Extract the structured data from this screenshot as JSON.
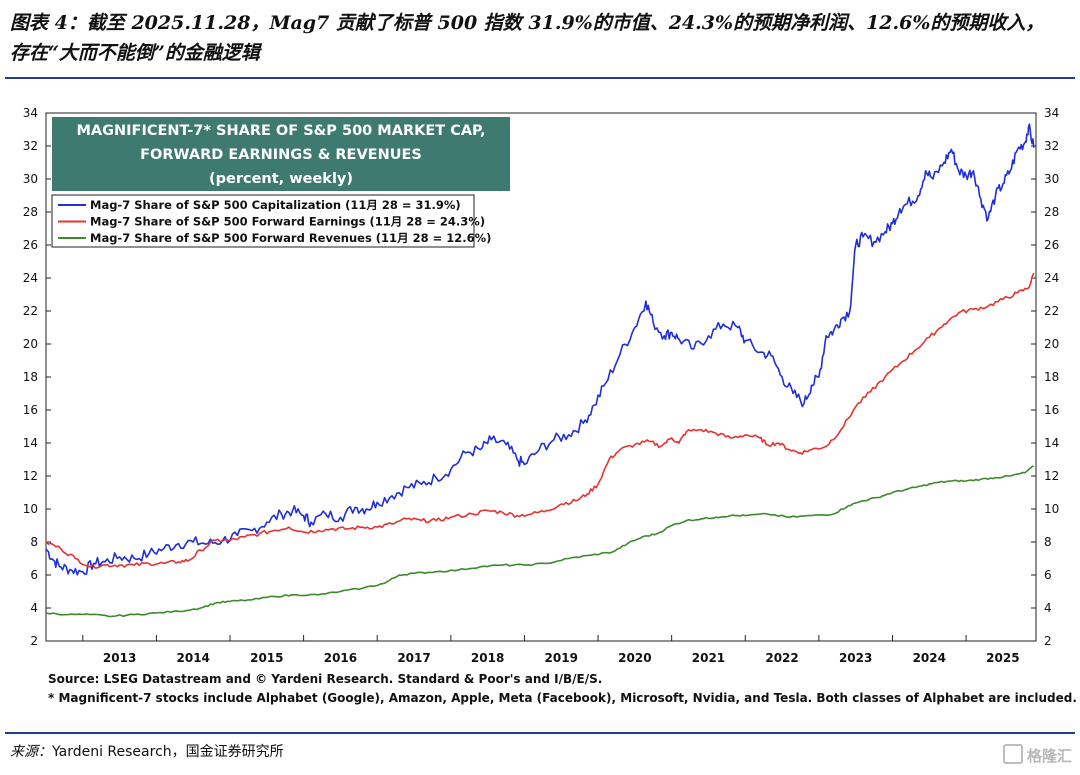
{
  "caption": {
    "line1": "图表 4：截至 2025.11.28，Mag7 贡献了标普 500 指数 31.9%的市值、24.3%的预期净利润、12.6%的预期收入，",
    "line2": "存在“大而不能倒”的金融逻辑"
  },
  "source_note": {
    "prefix": "来源：",
    "text": "Yardeni Research，国金证券研究所"
  },
  "watermark": "格隆汇",
  "colors": {
    "cap": "#1f2fd6",
    "earnings": "#e8322e",
    "revenues": "#3c8a2c",
    "title_box": "#3f7a70"
  },
  "chart_data": {
    "type": "line",
    "title_lines": [
      "MAGNIFICENT-7* SHARE OF S&P 500 MARKET CAP,",
      "FORWARD EARNINGS & REVENUES",
      "(percent, weekly)"
    ],
    "ylim": [
      2,
      34
    ],
    "yticks": [
      2,
      4,
      6,
      8,
      10,
      12,
      14,
      16,
      18,
      20,
      22,
      24,
      26,
      28,
      30,
      32,
      34
    ],
    "xlim": [
      2012.5,
      2025.95
    ],
    "xtick_labels": [
      "2013",
      "2014",
      "2015",
      "2016",
      "2017",
      "2018",
      "2019",
      "2020",
      "2021",
      "2022",
      "2023",
      "2024",
      "2025"
    ],
    "legend_position": "top-left",
    "grid": false,
    "series": [
      {
        "name": "Mag-7 Share of S&P 500 Capitalization (11月 28 = 31.9%)",
        "color_key": "cap",
        "points": [
          [
            2012.5,
            7.6
          ],
          [
            2012.6,
            6.9
          ],
          [
            2012.7,
            6.5
          ],
          [
            2012.85,
            6.3
          ],
          [
            2013.0,
            6.2
          ],
          [
            2013.15,
            6.7
          ],
          [
            2013.3,
            6.8
          ],
          [
            2013.5,
            7.1
          ],
          [
            2013.7,
            7.0
          ],
          [
            2013.9,
            7.3
          ],
          [
            2014.1,
            7.6
          ],
          [
            2014.3,
            7.9
          ],
          [
            2014.5,
            8.0
          ],
          [
            2014.7,
            7.9
          ],
          [
            2014.9,
            8.1
          ],
          [
            2015.1,
            8.4
          ],
          [
            2015.3,
            8.7
          ],
          [
            2015.5,
            9.2
          ],
          [
            2015.7,
            9.7
          ],
          [
            2015.85,
            9.9
          ],
          [
            2016.0,
            9.6
          ],
          [
            2016.1,
            9.2
          ],
          [
            2016.3,
            9.7
          ],
          [
            2016.5,
            9.5
          ],
          [
            2016.7,
            10.1
          ],
          [
            2016.85,
            10.0
          ],
          [
            2017.0,
            10.4
          ],
          [
            2017.2,
            10.8
          ],
          [
            2017.4,
            11.3
          ],
          [
            2017.6,
            11.5
          ],
          [
            2017.8,
            11.9
          ],
          [
            2018.0,
            12.4
          ],
          [
            2018.2,
            13.4
          ],
          [
            2018.4,
            13.6
          ],
          [
            2018.55,
            14.2
          ],
          [
            2018.75,
            13.9
          ],
          [
            2018.9,
            13.0
          ],
          [
            2019.0,
            12.7
          ],
          [
            2019.2,
            13.6
          ],
          [
            2019.4,
            14.2
          ],
          [
            2019.6,
            14.5
          ],
          [
            2019.8,
            15.2
          ],
          [
            2019.95,
            16.3
          ],
          [
            2020.1,
            17.6
          ],
          [
            2020.3,
            19.4
          ],
          [
            2020.5,
            21.0
          ],
          [
            2020.65,
            22.6
          ],
          [
            2020.75,
            21.3
          ],
          [
            2020.9,
            20.5
          ],
          [
            2021.0,
            20.7
          ],
          [
            2021.1,
            20.3
          ],
          [
            2021.3,
            19.7
          ],
          [
            2021.5,
            20.5
          ],
          [
            2021.7,
            21.2
          ],
          [
            2021.9,
            21.0
          ],
          [
            2022.0,
            20.2
          ],
          [
            2022.2,
            19.5
          ],
          [
            2022.35,
            19.3
          ],
          [
            2022.5,
            18.0
          ],
          [
            2022.65,
            17.0
          ],
          [
            2022.8,
            16.4
          ],
          [
            2022.9,
            17.5
          ],
          [
            2023.0,
            18.0
          ],
          [
            2023.1,
            20.5
          ],
          [
            2023.2,
            20.8
          ],
          [
            2023.3,
            21.5
          ],
          [
            2023.42,
            22.0
          ],
          [
            2023.5,
            26.0
          ],
          [
            2023.6,
            26.5
          ],
          [
            2023.75,
            26.2
          ],
          [
            2023.9,
            26.8
          ],
          [
            2024.0,
            27.3
          ],
          [
            2024.1,
            28.2
          ],
          [
            2024.2,
            28.5
          ],
          [
            2024.35,
            29.0
          ],
          [
            2024.45,
            30.5
          ],
          [
            2024.55,
            30.0
          ],
          [
            2024.7,
            31.0
          ],
          [
            2024.8,
            31.8
          ],
          [
            2024.9,
            30.5
          ],
          [
            2025.0,
            30.2
          ],
          [
            2025.1,
            30.5
          ],
          [
            2025.2,
            28.8
          ],
          [
            2025.3,
            27.6
          ],
          [
            2025.4,
            29.0
          ],
          [
            2025.5,
            29.7
          ],
          [
            2025.6,
            30.5
          ],
          [
            2025.7,
            31.8
          ],
          [
            2025.8,
            32.2
          ],
          [
            2025.85,
            33.2
          ],
          [
            2025.92,
            31.9
          ]
        ]
      },
      {
        "name": "Mag-7 Share of S&P 500 Forward Earnings (11月 28 = 24.3%)",
        "color_key": "earnings",
        "points": [
          [
            2012.5,
            8.0
          ],
          [
            2012.7,
            7.6
          ],
          [
            2012.9,
            7.0
          ],
          [
            2013.1,
            6.5
          ],
          [
            2013.3,
            6.6
          ],
          [
            2013.5,
            6.6
          ],
          [
            2013.7,
            6.6
          ],
          [
            2013.9,
            6.7
          ],
          [
            2014.1,
            6.7
          ],
          [
            2014.3,
            6.8
          ],
          [
            2014.45,
            6.9
          ],
          [
            2014.6,
            7.5
          ],
          [
            2014.8,
            8.1
          ],
          [
            2015.0,
            8.1
          ],
          [
            2015.2,
            8.3
          ],
          [
            2015.4,
            8.5
          ],
          [
            2015.6,
            8.7
          ],
          [
            2015.8,
            8.9
          ],
          [
            2016.0,
            8.6
          ],
          [
            2016.2,
            8.7
          ],
          [
            2016.4,
            8.8
          ],
          [
            2016.6,
            8.8
          ],
          [
            2016.8,
            8.9
          ],
          [
            2017.0,
            8.9
          ],
          [
            2017.2,
            9.1
          ],
          [
            2017.4,
            9.4
          ],
          [
            2017.6,
            9.3
          ],
          [
            2017.8,
            9.3
          ],
          [
            2018.0,
            9.5
          ],
          [
            2018.3,
            9.7
          ],
          [
            2018.5,
            9.9
          ],
          [
            2018.7,
            9.8
          ],
          [
            2018.9,
            9.6
          ],
          [
            2019.1,
            9.7
          ],
          [
            2019.3,
            9.9
          ],
          [
            2019.5,
            10.3
          ],
          [
            2019.7,
            10.5
          ],
          [
            2019.85,
            10.9
          ],
          [
            2020.0,
            11.5
          ],
          [
            2020.15,
            13.0
          ],
          [
            2020.3,
            13.6
          ],
          [
            2020.5,
            13.9
          ],
          [
            2020.7,
            14.1
          ],
          [
            2020.85,
            13.8
          ],
          [
            2021.0,
            14.3
          ],
          [
            2021.1,
            14.0
          ],
          [
            2021.2,
            14.7
          ],
          [
            2021.4,
            14.8
          ],
          [
            2021.6,
            14.6
          ],
          [
            2021.8,
            14.3
          ],
          [
            2022.0,
            14.5
          ],
          [
            2022.2,
            14.3
          ],
          [
            2022.3,
            13.9
          ],
          [
            2022.45,
            14.0
          ],
          [
            2022.6,
            13.6
          ],
          [
            2022.75,
            13.4
          ],
          [
            2022.9,
            13.6
          ],
          [
            2023.1,
            13.8
          ],
          [
            2023.3,
            14.8
          ],
          [
            2023.5,
            16.2
          ],
          [
            2023.7,
            17.1
          ],
          [
            2023.9,
            18.0
          ],
          [
            2024.1,
            18.8
          ],
          [
            2024.3,
            19.6
          ],
          [
            2024.5,
            20.4
          ],
          [
            2024.7,
            21.2
          ],
          [
            2024.9,
            21.9
          ],
          [
            2025.1,
            22.1
          ],
          [
            2025.3,
            22.3
          ],
          [
            2025.5,
            22.7
          ],
          [
            2025.7,
            23.1
          ],
          [
            2025.85,
            23.4
          ],
          [
            2025.92,
            24.3
          ]
        ]
      },
      {
        "name": "Mag-7 Share of S&P 500 Forward Revenues (11月 28 = 12.6%)",
        "color_key": "revenues",
        "points": [
          [
            2012.5,
            3.7
          ],
          [
            2012.8,
            3.6
          ],
          [
            2013.1,
            3.6
          ],
          [
            2013.4,
            3.5
          ],
          [
            2013.7,
            3.6
          ],
          [
            2014.0,
            3.7
          ],
          [
            2014.3,
            3.8
          ],
          [
            2014.6,
            4.0
          ],
          [
            2014.8,
            4.3
          ],
          [
            2015.0,
            4.4
          ],
          [
            2015.3,
            4.5
          ],
          [
            2015.6,
            4.7
          ],
          [
            2015.9,
            4.8
          ],
          [
            2016.2,
            4.8
          ],
          [
            2016.5,
            5.0
          ],
          [
            2016.8,
            5.2
          ],
          [
            2017.1,
            5.5
          ],
          [
            2017.3,
            6.0
          ],
          [
            2017.5,
            6.1
          ],
          [
            2017.8,
            6.2
          ],
          [
            2018.1,
            6.3
          ],
          [
            2018.4,
            6.5
          ],
          [
            2018.7,
            6.6
          ],
          [
            2019.0,
            6.6
          ],
          [
            2019.3,
            6.7
          ],
          [
            2019.6,
            7.0
          ],
          [
            2019.9,
            7.2
          ],
          [
            2020.2,
            7.4
          ],
          [
            2020.4,
            7.9
          ],
          [
            2020.6,
            8.3
          ],
          [
            2020.8,
            8.5
          ],
          [
            2021.0,
            9.0
          ],
          [
            2021.2,
            9.3
          ],
          [
            2021.4,
            9.4
          ],
          [
            2021.6,
            9.5
          ],
          [
            2021.8,
            9.6
          ],
          [
            2022.0,
            9.6
          ],
          [
            2022.3,
            9.7
          ],
          [
            2022.6,
            9.5
          ],
          [
            2022.9,
            9.6
          ],
          [
            2023.2,
            9.7
          ],
          [
            2023.4,
            10.2
          ],
          [
            2023.6,
            10.5
          ],
          [
            2023.8,
            10.7
          ],
          [
            2024.0,
            11.0
          ],
          [
            2024.2,
            11.2
          ],
          [
            2024.4,
            11.4
          ],
          [
            2024.6,
            11.6
          ],
          [
            2024.8,
            11.7
          ],
          [
            2025.0,
            11.7
          ],
          [
            2025.2,
            11.8
          ],
          [
            2025.4,
            11.9
          ],
          [
            2025.6,
            12.0
          ],
          [
            2025.8,
            12.2
          ],
          [
            2025.92,
            12.6
          ]
        ]
      }
    ],
    "footnotes": [
      "Source: LSEG Datastream and © Yardeni Research. Standard & Poor's and I/B/E/S.",
      "* Magnificent-7 stocks include Alphabet (Google), Amazon, Apple, Meta (Facebook), Microsoft, Nvidia, and Tesla. Both classes of Alphabet are included."
    ]
  }
}
